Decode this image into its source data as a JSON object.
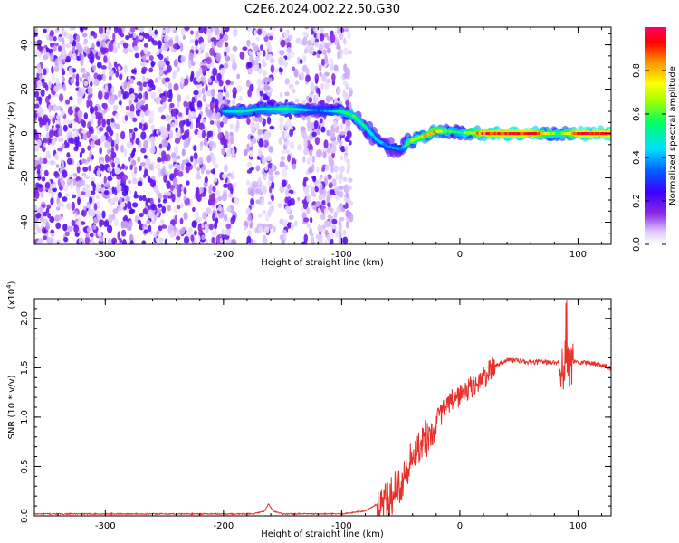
{
  "title": "C2E6.2024.002.22.50.G30",
  "chart_data": [
    {
      "type": "heatmap",
      "xlabel": "Height of straight line (km)",
      "ylabel": "Frequency (Hz)",
      "xlim": [
        -360,
        128
      ],
      "ylim": [
        -50,
        48
      ],
      "x_ticks": [
        -300,
        -200,
        -100,
        0,
        100
      ],
      "y_ticks": [
        -40,
        -20,
        0,
        20,
        40
      ],
      "colorbar": {
        "label": "Normalized spectral amplitude",
        "range": [
          0,
          1
        ],
        "ticks": [
          "0.0",
          "0.2",
          "0.4",
          "0.6",
          "0.8"
        ],
        "colormap": "rainbow (white to purple to blue to cyan to green to yellow to red)"
      },
      "noise_region_x": [
        -360,
        -100
      ],
      "gaps_x": [
        [
          -190,
          -180
        ],
        [
          -158,
          -152
        ],
        [
          -140,
          -132
        ]
      ],
      "ridge": [
        {
          "x": -200,
          "y": 10,
          "amp": 0.45
        },
        {
          "x": -185,
          "y": 10,
          "amp": 0.55
        },
        {
          "x": -170,
          "y": 11,
          "amp": 0.5
        },
        {
          "x": -145,
          "y": 11,
          "amp": 0.6
        },
        {
          "x": -120,
          "y": 10.5,
          "amp": 0.35
        },
        {
          "x": -100,
          "y": 10,
          "amp": 0.55
        },
        {
          "x": -90,
          "y": 8,
          "amp": 0.6
        },
        {
          "x": -80,
          "y": 3,
          "amp": 0.55
        },
        {
          "x": -70,
          "y": -3,
          "amp": 0.45
        },
        {
          "x": -60,
          "y": -6,
          "amp": 0.4
        },
        {
          "x": -50,
          "y": -7,
          "amp": 0.4
        },
        {
          "x": -40,
          "y": -3,
          "amp": 0.7
        },
        {
          "x": -30,
          "y": -1,
          "amp": 0.8
        },
        {
          "x": -20,
          "y": 1,
          "amp": 0.85
        },
        {
          "x": -10,
          "y": 1,
          "amp": 0.6
        },
        {
          "x": 0,
          "y": 0.5,
          "amp": 0.55
        },
        {
          "x": 20,
          "y": 0,
          "amp": 0.95
        },
        {
          "x": 60,
          "y": 0,
          "amp": 1.0
        },
        {
          "x": 85,
          "y": 0,
          "amp": 0.6
        },
        {
          "x": 100,
          "y": 0,
          "amp": 1.0
        },
        {
          "x": 128,
          "y": 0,
          "amp": 1.0
        }
      ]
    },
    {
      "type": "line",
      "xlabel": "Height of straight line (km)",
      "ylabel": "SNR (10 * v/v)",
      "y_exponent_label": "(x10",
      "y_exponent_power": "4",
      "y_exponent_close": ")",
      "xlim": [
        -360,
        128
      ],
      "ylim": [
        0,
        2.2
      ],
      "x_ticks": [
        -300,
        -200,
        -100,
        0,
        100
      ],
      "y_ticks": [
        "0.0",
        "0.5",
        "1.0",
        "1.5",
        "2.0"
      ],
      "series": [
        {
          "color": "#e8302a",
          "x": [
            -360,
            -300,
            -250,
            -200,
            -175,
            -165,
            -162,
            -158,
            -150,
            -120,
            -110,
            -100,
            -80,
            -70,
            -60,
            -55,
            -50,
            -45,
            -40,
            -35,
            -30,
            -25,
            -20,
            -15,
            -10,
            -5,
            0,
            10,
            20,
            30,
            40,
            50,
            60,
            70,
            80,
            85,
            88,
            90,
            92,
            95,
            100,
            110,
            120,
            128
          ],
          "y": [
            0.02,
            0.02,
            0.02,
            0.02,
            0.02,
            0.05,
            0.12,
            0.05,
            0.02,
            0.02,
            0.02,
            0.02,
            0.05,
            0.12,
            0.2,
            0.28,
            0.4,
            0.55,
            0.6,
            0.7,
            0.8,
            0.88,
            0.95,
            1.05,
            1.12,
            1.18,
            1.22,
            1.3,
            1.4,
            1.52,
            1.58,
            1.57,
            1.55,
            1.56,
            1.55,
            1.57,
            1.45,
            1.6,
            1.5,
            1.56,
            1.56,
            1.55,
            1.53,
            1.5
          ]
        }
      ]
    }
  ]
}
